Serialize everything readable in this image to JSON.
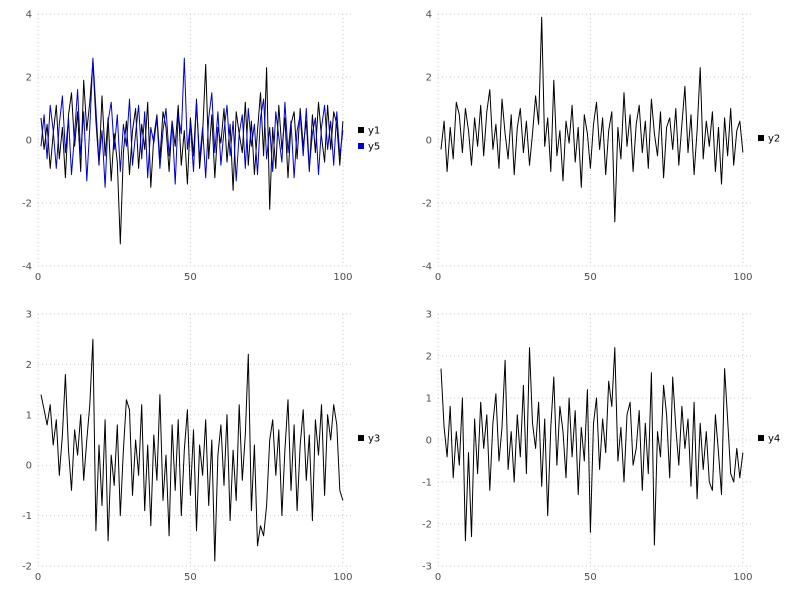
{
  "page": {
    "background_color": "#ffffff"
  },
  "chart_data": [
    {
      "position": "top-left",
      "type": "line",
      "title": "",
      "xlabel": "",
      "ylabel": "",
      "x_start": 1,
      "xlim": [
        0,
        103
      ],
      "xticks": [
        0,
        50,
        100
      ],
      "ylim": [
        -4,
        4
      ],
      "yticks": [
        -4,
        -2,
        0,
        2,
        4
      ],
      "grid": true,
      "legend_position": "right",
      "series": [
        {
          "name": "y1",
          "color": "#000000",
          "values": [
            0.7,
            -0.3,
            0.5,
            -0.9,
            0.2,
            1.1,
            -0.6,
            0.4,
            -1.2,
            0.8,
            1.5,
            -0.2,
            0.9,
            -1.0,
            1.9,
            0.3,
            1.2,
            2.5,
            0.6,
            -0.8,
            1.4,
            -0.5,
            0.7,
            -1.3,
            0.2,
            -0.7,
            -3.3,
            -0.4,
            0.6,
            -1.1,
            0.3,
            1.0,
            -0.9,
            0.5,
            -0.3,
            1.2,
            -1.5,
            0.1,
            0.8,
            -0.6,
            0.9,
            0.4,
            -1.0,
            0.6,
            -0.2,
            1.1,
            -0.8,
            0.3,
            -1.4,
            0.7,
            -0.5,
            1.3,
            -0.9,
            0.2,
            2.4,
            -0.6,
            0.8,
            -1.2,
            0.4,
            -0.1,
            1.0,
            -0.7,
            0.5,
            -1.6,
            0.9,
            0.2,
            -0.4,
            1.2,
            -0.8,
            0.6,
            -1.1,
            0.3,
            1.5,
            -0.5,
            2.3,
            -2.2,
            0.4,
            -0.9,
            1.1,
            -0.3,
            0.7,
            -1.2,
            0.5,
            0.9,
            -0.6,
            1.0,
            -0.2,
            0.6,
            -1.0,
            0.8,
            -0.4,
            1.2,
            0.1,
            -0.7,
            1.1,
            -0.3,
            0.9,
            0.5,
            -0.8,
            0.6
          ]
        },
        {
          "name": "y5",
          "color": "#0000cc",
          "values": [
            -0.2,
            0.8,
            -0.6,
            1.1,
            0.3,
            -0.9,
            0.5,
            1.4,
            -0.4,
            0.7,
            -1.1,
            0.2,
            1.6,
            -0.5,
            0.9,
            -1.3,
            0.4,
            2.6,
            1.0,
            -0.7,
            0.3,
            -1.5,
            0.6,
            1.2,
            -0.3,
            0.8,
            -1.0,
            0.5,
            -0.2,
            1.3,
            -0.8,
            0.2,
            1.1,
            -0.6,
            0.9,
            -1.2,
            0.4,
            -0.1,
            0.7,
            -0.9,
            0.3,
            1.0,
            -0.5,
            0.6,
            -1.4,
            0.8,
            0.2,
            2.6,
            -0.3,
            0.5,
            -1.0,
            1.2,
            -0.6,
            0.4,
            -1.2,
            0.7,
            1.5,
            -0.4,
            0.9,
            -0.8,
            0.3,
            1.1,
            -0.5,
            0.6,
            -1.3,
            0.2,
            0.8,
            -0.9,
            1.0,
            -0.2,
            0.5,
            -1.1,
            0.7,
            1.3,
            -0.6,
            0.4,
            -1.0,
            0.9,
            0.1,
            -0.7,
            1.2,
            -0.4,
            0.6,
            -1.2,
            0.3,
            0.8,
            -0.5,
            1.0,
            -0.9,
            0.2,
            0.7,
            -1.1,
            0.4,
            1.1,
            -0.3,
            0.6,
            -0.8,
            0.9,
            -0.5,
            0.3
          ]
        }
      ]
    },
    {
      "position": "top-right",
      "type": "line",
      "title": "",
      "xlabel": "",
      "ylabel": "",
      "x_start": 1,
      "xlim": [
        0,
        103
      ],
      "xticks": [
        0,
        50,
        100
      ],
      "ylim": [
        -4,
        4
      ],
      "yticks": [
        -4,
        -2,
        0,
        2,
        4
      ],
      "grid": true,
      "legend_position": "right",
      "series": [
        {
          "name": "y2",
          "color": "#000000",
          "values": [
            -0.3,
            0.6,
            -1.0,
            0.4,
            -0.6,
            1.2,
            0.8,
            -0.4,
            1.0,
            0.3,
            -0.8,
            0.7,
            -0.2,
            1.1,
            -0.5,
            0.9,
            1.6,
            -0.3,
            0.5,
            -0.9,
            1.3,
            0.2,
            -0.6,
            0.8,
            -1.1,
            0.4,
            1.0,
            -0.4,
            0.6,
            -0.8,
            0.2,
            1.4,
            0.5,
            3.9,
            -0.2,
            0.7,
            -1.0,
            1.9,
            -0.5,
            0.3,
            -1.3,
            0.6,
            -0.1,
            1.1,
            -0.7,
            0.4,
            -1.5,
            0.8,
            0.2,
            -0.9,
            0.5,
            1.2,
            -0.3,
            0.7,
            -1.1,
            0.3,
            0.9,
            -2.6,
            0.4,
            -0.6,
            1.5,
            -0.2,
            0.8,
            -1.0,
            0.5,
            1.1,
            -0.4,
            0.6,
            -0.9,
            1.3,
            0.2,
            -0.5,
            0.9,
            -1.2,
            0.4,
            0.7,
            -0.3,
            1.0,
            -0.8,
            0.5,
            1.7,
            -0.4,
            0.8,
            -1.1,
            0.3,
            2.3,
            -0.6,
            0.6,
            -0.2,
            0.9,
            -1.0,
            0.4,
            -1.4,
            0.7,
            -0.5,
            1.0,
            -0.8,
            0.3,
            0.6,
            -0.4
          ]
        }
      ]
    },
    {
      "position": "bottom-left",
      "type": "line",
      "title": "",
      "xlabel": "",
      "ylabel": "",
      "x_start": 1,
      "xlim": [
        0,
        103
      ],
      "xticks": [
        0,
        50,
        100
      ],
      "ylim": [
        -2,
        3
      ],
      "yticks": [
        -2,
        -1,
        0,
        1,
        2,
        3
      ],
      "grid": true,
      "legend_position": "right",
      "series": [
        {
          "name": "y3",
          "color": "#000000",
          "values": [
            1.4,
            1.1,
            0.8,
            1.2,
            0.4,
            0.9,
            -0.2,
            0.6,
            1.8,
            0.3,
            -0.5,
            0.7,
            0.2,
            1.0,
            -0.3,
            0.5,
            1.2,
            2.5,
            -1.3,
            0.4,
            -0.8,
            0.9,
            -1.5,
            0.2,
            -0.4,
            0.8,
            -1.0,
            0.3,
            1.3,
            1.1,
            -0.6,
            0.5,
            -0.2,
            1.2,
            -0.9,
            0.4,
            -1.2,
            0.6,
            -0.3,
            1.4,
            -0.7,
            0.2,
            -1.4,
            0.8,
            -0.5,
            0.9,
            -1.0,
            0.3,
            1.1,
            -0.6,
            0.7,
            -1.3,
            0.4,
            -0.2,
            0.9,
            -0.8,
            0.5,
            -1.9,
            0.2,
            0.8,
            -0.4,
            1.0,
            -1.1,
            0.3,
            -0.7,
            1.2,
            -0.3,
            0.6,
            2.2,
            -0.9,
            0.4,
            -1.6,
            -1.2,
            -1.4,
            -0.8,
            0.5,
            0.9,
            -0.2,
            0.7,
            -1.0,
            0.3,
            1.3,
            -0.5,
            0.8,
            -0.9,
            0.4,
            1.1,
            -0.3,
            0.6,
            -1.1,
            0.9,
            0.2,
            1.2,
            -0.6,
            1.0,
            0.5,
            1.2,
            0.8,
            -0.5,
            -0.7
          ]
        }
      ]
    },
    {
      "position": "bottom-right",
      "type": "line",
      "title": "",
      "xlabel": "",
      "ylabel": "",
      "x_start": 1,
      "xlim": [
        0,
        103
      ],
      "xticks": [
        0,
        50,
        100
      ],
      "ylim": [
        -3,
        3
      ],
      "yticks": [
        -3,
        -2,
        -1,
        0,
        1,
        2,
        3
      ],
      "grid": true,
      "legend_position": "right",
      "series": [
        {
          "name": "y4",
          "color": "#000000",
          "values": [
            1.7,
            0.3,
            -0.4,
            0.8,
            -0.9,
            0.2,
            -0.6,
            1.0,
            -2.4,
            -0.3,
            -2.3,
            0.5,
            -0.8,
            0.9,
            -0.2,
            0.6,
            -1.2,
            0.4,
            1.1,
            -0.5,
            0.3,
            1.9,
            -0.7,
            0.2,
            -1.0,
            0.6,
            -0.4,
            1.3,
            -0.8,
            2.2,
            0.4,
            -0.2,
            0.9,
            -1.1,
            0.5,
            -1.8,
            0.3,
            1.5,
            -0.6,
            0.8,
            0.2,
            -0.9,
            1.0,
            -0.4,
            0.7,
            -1.3,
            0.3,
            -0.5,
            1.2,
            -2.2,
            0.4,
            1.0,
            -0.7,
            0.5,
            -0.3,
            1.4,
            0.8,
            2.2,
            -0.5,
            0.3,
            -1.0,
            0.6,
            0.9,
            -0.6,
            -0.2,
            0.7,
            -1.2,
            0.4,
            -0.8,
            1.6,
            -2.5,
            0.2,
            -0.4,
            1.3,
            0.6,
            -0.9,
            1.5,
            0.3,
            -0.6,
            0.8,
            -0.2,
            0.5,
            -1.1,
            0.9,
            -1.4,
            0.4,
            -0.7,
            0.2,
            -1.0,
            -1.2,
            0.6,
            -0.3,
            -1.3,
            1.7,
            0.5,
            -0.8,
            -1.0,
            -0.2,
            -0.9,
            -0.3
          ]
        }
      ]
    }
  ]
}
